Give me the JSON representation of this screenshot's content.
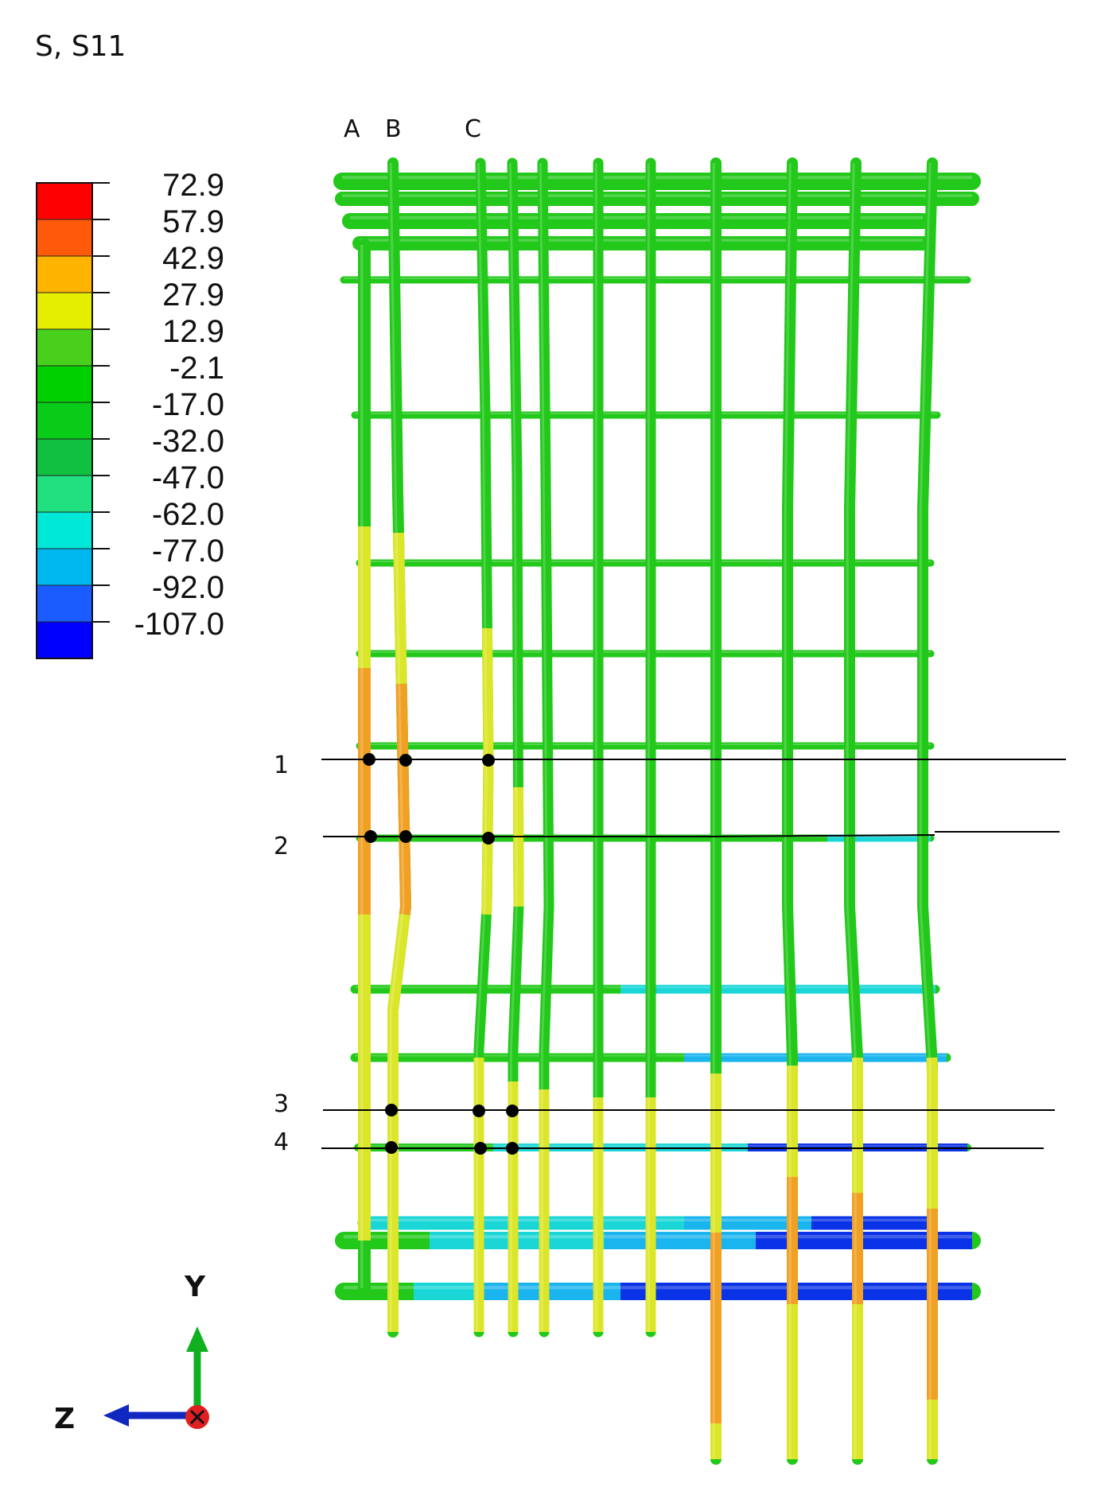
{
  "title": "S, S11",
  "legend": {
    "labels": [
      "72.9",
      "57.9",
      "42.9",
      "27.9",
      "12.9",
      "-2.1",
      "-17.0",
      "-32.0",
      "-47.0",
      "-62.0",
      "-77.0",
      "-92.0",
      "-107.0"
    ],
    "colors": [
      "#ff0000",
      "#ff5a0a",
      "#ffb400",
      "#e6ee00",
      "#48d01c",
      "#00d000",
      "#08cc18",
      "#10c040",
      "#20e080",
      "#00e8d8",
      "#00b8f0",
      "#1a5cff",
      "#0000ff"
    ]
  },
  "columns": [
    "A",
    "B",
    "C"
  ],
  "sections": [
    "1",
    "2",
    "3",
    "4"
  ],
  "axes": {
    "y": "Y",
    "z": "Z"
  },
  "palette": {
    "green": "#22c81a",
    "yellow": "#dbe628",
    "orange": "#f0a022",
    "cyan": "#1ad6d6",
    "lightblue": "#1ab4ee",
    "blue": "#0a32e6",
    "marker": "#000000"
  }
}
